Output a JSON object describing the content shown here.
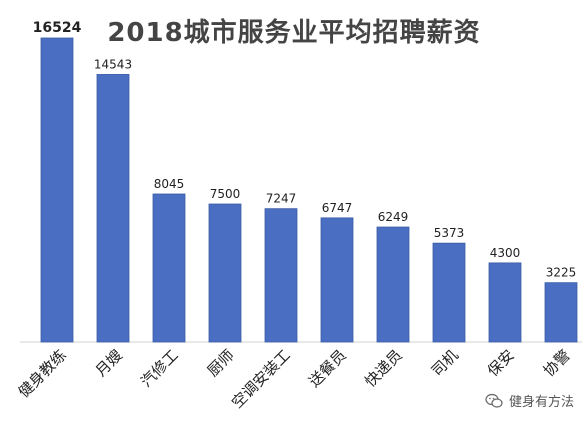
{
  "chart_data": {
    "type": "bar",
    "title": "2018城市服务业平均招聘薪资",
    "categories": [
      "健身教练",
      "月嫂",
      "汽修工",
      "厨师",
      "空调安装工",
      "送餐员",
      "快递员",
      "司机",
      "保安",
      "协警"
    ],
    "values": [
      16524,
      14543,
      8045,
      7500,
      7247,
      6747,
      6249,
      5373,
      4300,
      3225
    ],
    "data_labels": [
      "16524",
      "14543",
      "8045",
      "7500",
      "7247",
      "6747",
      "6249",
      "5373",
      "4300",
      "3225"
    ],
    "xlabel": "",
    "ylabel": "",
    "ylim": [
      0,
      16524
    ],
    "grid": false,
    "legend": "none",
    "colors": {
      "bar": "#4A6FC2",
      "bar_edge": "#3A5AA6",
      "title": "#444444",
      "label": "#222222"
    }
  },
  "watermark": {
    "text": "健身有方法",
    "icon": "wechat-icon"
  }
}
